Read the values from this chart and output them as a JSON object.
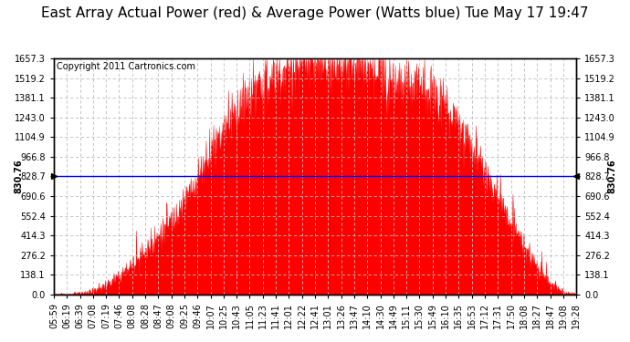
{
  "title": "East Array Actual Power (red) & Average Power (Watts blue) Tue May 17 19:47",
  "copyright": "Copyright 2011 Cartronics.com",
  "avg_power": 830.76,
  "ymax": 1657.3,
  "ymin": 0.0,
  "yticks": [
    0.0,
    138.1,
    276.2,
    414.3,
    552.4,
    690.6,
    828.7,
    966.8,
    1104.9,
    1243.0,
    1381.1,
    1519.2,
    1657.3
  ],
  "area_color": "#FF0000",
  "line_color": "#0000FF",
  "background_color": "#FFFFFF",
  "grid_color": "#BBBBBB",
  "xtick_labels": [
    "05:59",
    "06:19",
    "06:39",
    "07:08",
    "07:19",
    "07:46",
    "08:08",
    "08:28",
    "08:47",
    "09:08",
    "09:25",
    "09:46",
    "10:07",
    "10:25",
    "10:43",
    "11:05",
    "11:23",
    "11:41",
    "12:01",
    "12:22",
    "12:41",
    "13:01",
    "13:26",
    "13:47",
    "14:10",
    "14:30",
    "14:49",
    "15:11",
    "15:30",
    "15:49",
    "16:10",
    "16:35",
    "16:53",
    "17:12",
    "17:31",
    "17:50",
    "18:08",
    "18:27",
    "18:47",
    "19:08",
    "19:28"
  ],
  "power_values": [
    2,
    3,
    8,
    25,
    65,
    130,
    210,
    300,
    400,
    520,
    640,
    820,
    1020,
    1160,
    1280,
    1380,
    1450,
    1510,
    1560,
    1590,
    1605,
    1610,
    1595,
    1570,
    1555,
    1535,
    1510,
    1490,
    1460,
    1400,
    1310,
    1190,
    1040,
    870,
    680,
    490,
    330,
    185,
    75,
    18,
    2
  ],
  "title_fontsize": 11,
  "copyright_fontsize": 7,
  "tick_fontsize": 7,
  "avg_label_fontsize": 7
}
